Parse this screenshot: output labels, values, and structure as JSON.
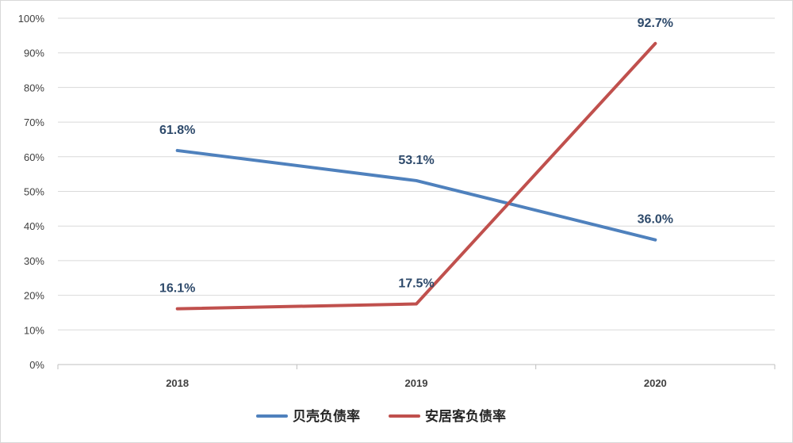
{
  "chart_data": {
    "type": "line",
    "categories": [
      "2018",
      "2019",
      "2020"
    ],
    "series": [
      {
        "name": "贝壳负债率",
        "values": [
          61.8,
          53.1,
          36.0
        ],
        "labels": [
          "61.8%",
          "53.1%",
          "36.0%"
        ],
        "color": "#4f81bd"
      },
      {
        "name": "安居客负债率",
        "values": [
          16.1,
          17.5,
          92.7
        ],
        "labels": [
          "16.1%",
          "17.5%",
          "92.7%"
        ],
        "color": "#c0504d"
      }
    ],
    "ylim": [
      0,
      100
    ],
    "yticks": [
      "0%",
      "10%",
      "20%",
      "30%",
      "40%",
      "50%",
      "60%",
      "70%",
      "80%",
      "90%",
      "100%"
    ],
    "grid": true,
    "legend": "bottom"
  }
}
